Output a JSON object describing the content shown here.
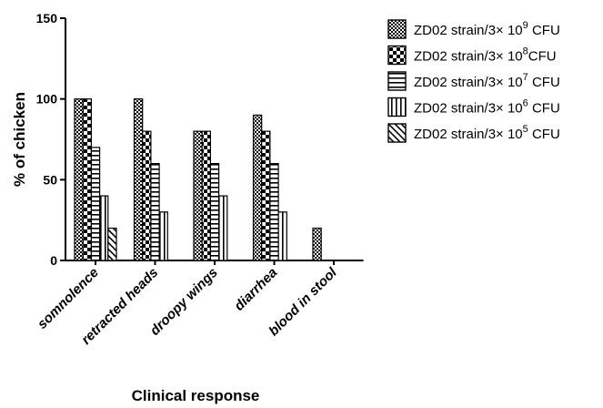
{
  "chart_data": {
    "type": "bar",
    "title": "",
    "xlabel": "Clinical response",
    "ylabel": "% of chicken",
    "ylim": [
      0,
      150
    ],
    "yticks": [
      "0",
      "50",
      "100",
      "150"
    ],
    "categories": [
      "somnolence",
      "retracted heads",
      "droopy wings",
      "diarrhea",
      "blood in stool"
    ],
    "series": [
      {
        "name": "ZD02 strain/3× 10",
        "exp": "9",
        "unit": " CFU",
        "pattern": "fine-check",
        "values": [
          100,
          100,
          80,
          90,
          20
        ]
      },
      {
        "name": "ZD02 strain/3× 10",
        "exp": "8",
        "unit": "CFU",
        "pattern": "checker",
        "values": [
          100,
          80,
          80,
          80,
          0
        ]
      },
      {
        "name": "ZD02 strain/3× 10",
        "exp": "7",
        "unit": " CFU",
        "pattern": "horizontal",
        "values": [
          70,
          60,
          60,
          60,
          0
        ]
      },
      {
        "name": "ZD02 strain/3× 10",
        "exp": "6",
        "unit": " CFU",
        "pattern": "vertical",
        "values": [
          40,
          30,
          40,
          30,
          0
        ]
      },
      {
        "name": "ZD02 strain/3× 10",
        "exp": "5",
        "unit": " CFU",
        "pattern": "diagonal",
        "values": [
          20,
          0,
          0,
          0,
          0
        ]
      }
    ],
    "legend_position": "top-right",
    "grid": false
  }
}
